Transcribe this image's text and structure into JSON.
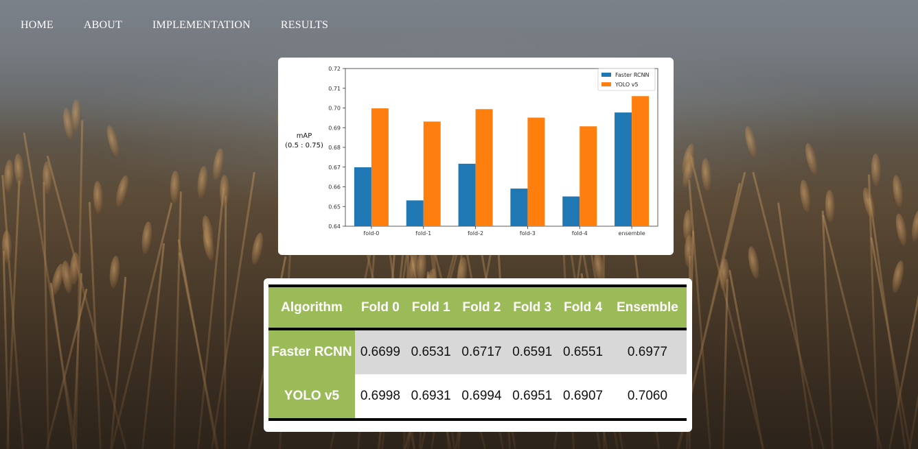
{
  "nav": {
    "items": [
      {
        "label": "HOME"
      },
      {
        "label": "ABOUT"
      },
      {
        "label": "IMPLEMENTATION"
      },
      {
        "label": "RESULTS"
      }
    ]
  },
  "chart_data": {
    "type": "bar",
    "categories": [
      "fold-0",
      "fold-1",
      "fold-2",
      "fold-3",
      "fold-4",
      "ensemble"
    ],
    "series": [
      {
        "name": "Faster RCNN",
        "color": "#1f77b4",
        "values": [
          0.6699,
          0.6531,
          0.6717,
          0.6591,
          0.6551,
          0.6977
        ]
      },
      {
        "name": "YOLO v5",
        "color": "#ff7f0e",
        "values": [
          0.6998,
          0.6931,
          0.6994,
          0.6951,
          0.6907,
          0.706
        ]
      }
    ],
    "ylabel_line1": "mAP",
    "ylabel_line2": "(0.5 : 0.75)",
    "ylim": [
      0.64,
      0.72
    ],
    "yticks": [
      "0.64",
      "0.65",
      "0.66",
      "0.67",
      "0.68",
      "0.69",
      "0.70",
      "0.71",
      "0.72"
    ],
    "legend_position": "top-right",
    "grid": false
  },
  "table": {
    "headers": [
      "Algorithm",
      "Fold 0",
      "Fold 1",
      "Fold 2",
      "Fold 3",
      "Fold 4",
      "Ensemble"
    ],
    "rows": [
      {
        "algorithm": "Faster RCNN",
        "values": [
          "0.6699",
          "0.6531",
          "0.6717",
          "0.6591",
          "0.6551",
          "0.6977"
        ]
      },
      {
        "algorithm": "YOLO v5",
        "values": [
          "0.6998",
          "0.6931",
          "0.6994",
          "0.6951",
          "0.6907",
          "0.7060"
        ]
      }
    ],
    "header_color": "#9bbb59",
    "stripe_color": "#d8d8d8"
  }
}
